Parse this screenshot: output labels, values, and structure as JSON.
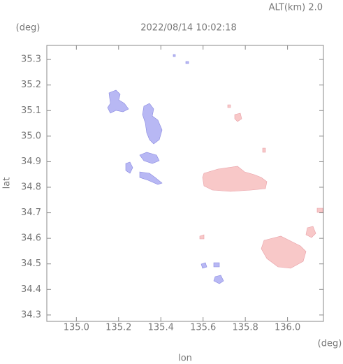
{
  "chart_data": {
    "type": "map",
    "title": "2022/08/14 10:02:18",
    "subtitle": "ALT(km) 2.0",
    "y_unit": "(deg)",
    "x_unit": "(deg)",
    "xlabel": "lon",
    "ylabel": "lat",
    "xlim": [
      134.86,
      136.17
    ],
    "ylim": [
      34.275,
      35.355
    ],
    "xticks": [
      {
        "value": 135,
        "label": "135.0"
      },
      135.2,
      135.4,
      135.6,
      135.8,
      {
        "value": 136,
        "label": "136.0"
      }
    ],
    "yticks": [
      34.3,
      34.4,
      34.5,
      34.6,
      34.7,
      34.8,
      34.9,
      {
        "value": 35,
        "label": "35.0"
      },
      35.1,
      35.2,
      35.3
    ]
  }
}
